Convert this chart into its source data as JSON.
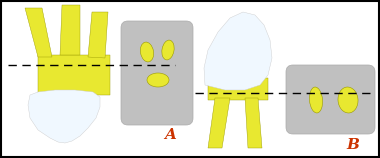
{
  "fig_width": 3.8,
  "fig_height": 1.58,
  "dpi": 100,
  "bg_color": "#ffffff",
  "border_color": "#000000",
  "yellow": "#e8e830",
  "gray_cross": "#c0c0c0",
  "white_tooth": "#e8eeff",
  "white_tooth2": "#f0f8ff",
  "label_A": "A",
  "label_B": "B",
  "label_color": "#cc3300",
  "dash_color": "#000000"
}
